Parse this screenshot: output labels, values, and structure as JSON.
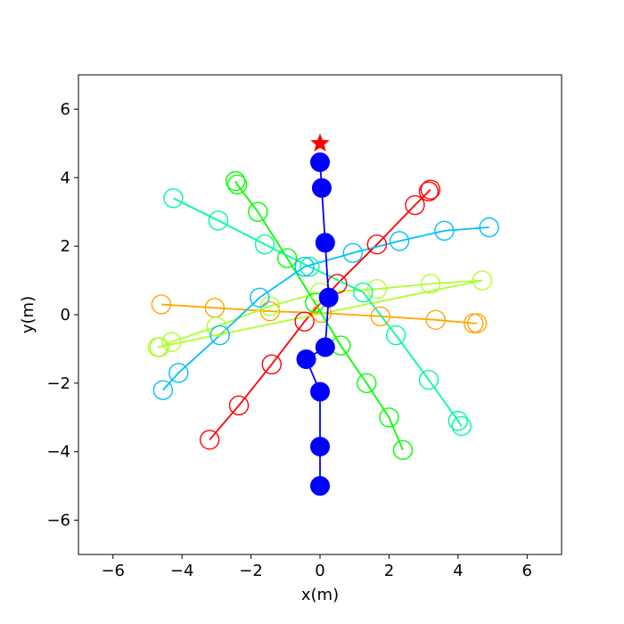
{
  "chart_data": {
    "type": "scatter",
    "title": "",
    "xlabel": "x(m)",
    "ylabel": "y(m)",
    "xlim": [
      -7,
      7
    ],
    "ylim": [
      -7,
      7
    ],
    "xticks": [
      -6,
      -4,
      -2,
      0,
      2,
      4,
      6
    ],
    "yticks": [
      -6,
      -4,
      -2,
      0,
      2,
      4,
      6
    ],
    "xtick_labels": [
      "−6",
      "−4",
      "−2",
      "0",
      "2",
      "4",
      "6"
    ],
    "ytick_labels": [
      "−6",
      "−4",
      "−2",
      "0",
      "2",
      "4",
      "6"
    ],
    "grid": false,
    "goal": {
      "x": 0.0,
      "y": 5.0,
      "marker": "star",
      "color": "#ff0000"
    },
    "robot": {
      "color": "#0000ff",
      "points": [
        [
          0.0,
          -5.0
        ],
        [
          0.0,
          -3.85
        ],
        [
          0.0,
          -2.25
        ],
        [
          -0.4,
          -1.3
        ],
        [
          0.15,
          -0.95
        ],
        [
          0.25,
          0.5
        ],
        [
          0.15,
          2.1
        ],
        [
          0.05,
          3.7
        ],
        [
          0.0,
          4.45
        ]
      ]
    },
    "agents": [
      {
        "color": "#ff0000",
        "points": [
          [
            -3.2,
            -3.65
          ],
          [
            -2.35,
            -2.65
          ],
          [
            -1.4,
            -1.45
          ],
          [
            -0.45,
            -0.2
          ],
          [
            0.5,
            0.9
          ],
          [
            1.65,
            2.05
          ],
          [
            2.75,
            3.2
          ],
          [
            3.15,
            3.6
          ],
          [
            3.2,
            3.65
          ]
        ]
      },
      {
        "color": "#ffa500",
        "points": [
          [
            -4.6,
            0.3
          ],
          [
            -3.05,
            0.2
          ],
          [
            -1.45,
            0.1
          ],
          [
            0.05,
            0.05
          ],
          [
            1.75,
            -0.05
          ],
          [
            3.35,
            -0.15
          ],
          [
            4.45,
            -0.25
          ],
          [
            4.55,
            -0.25
          ]
        ]
      },
      {
        "color": "#adff2f",
        "points": [
          [
            -4.65,
            -0.95
          ],
          [
            -4.3,
            -0.8
          ],
          [
            -3.0,
            -0.35
          ],
          [
            -1.45,
            0.25
          ],
          [
            0.0,
            0.65
          ],
          [
            1.65,
            0.75
          ],
          [
            3.2,
            0.9
          ],
          [
            4.7,
            1.0
          ],
          [
            -4.7,
            -0.95
          ]
        ]
      },
      {
        "color": "#00ff00",
        "points": [
          [
            -2.45,
            3.9
          ],
          [
            -2.4,
            3.8
          ],
          [
            -1.8,
            3.0
          ],
          [
            -0.95,
            1.65
          ],
          [
            -0.15,
            0.35
          ],
          [
            0.6,
            -0.9
          ],
          [
            1.35,
            -2.0
          ],
          [
            2.0,
            -3.0
          ],
          [
            2.4,
            -3.95
          ]
        ]
      },
      {
        "color": "#00fa9a",
        "points": [
          [
            -4.25,
            3.4
          ],
          [
            -2.95,
            2.75
          ],
          [
            -1.6,
            2.05
          ],
          [
            -0.3,
            1.4
          ],
          [
            1.25,
            0.65
          ],
          [
            2.2,
            -0.6
          ],
          [
            3.15,
            -1.9
          ],
          [
            4.0,
            -3.1
          ],
          [
            4.1,
            -3.25
          ]
        ]
      },
      {
        "color": "#00bfff",
        "points": [
          [
            -4.55,
            -2.2
          ],
          [
            -4.1,
            -1.7
          ],
          [
            -2.9,
            -0.6
          ],
          [
            -1.75,
            0.5
          ],
          [
            -0.45,
            1.4
          ],
          [
            0.95,
            1.8
          ],
          [
            2.3,
            2.15
          ],
          [
            3.6,
            2.45
          ],
          [
            4.9,
            2.55
          ]
        ]
      }
    ]
  }
}
